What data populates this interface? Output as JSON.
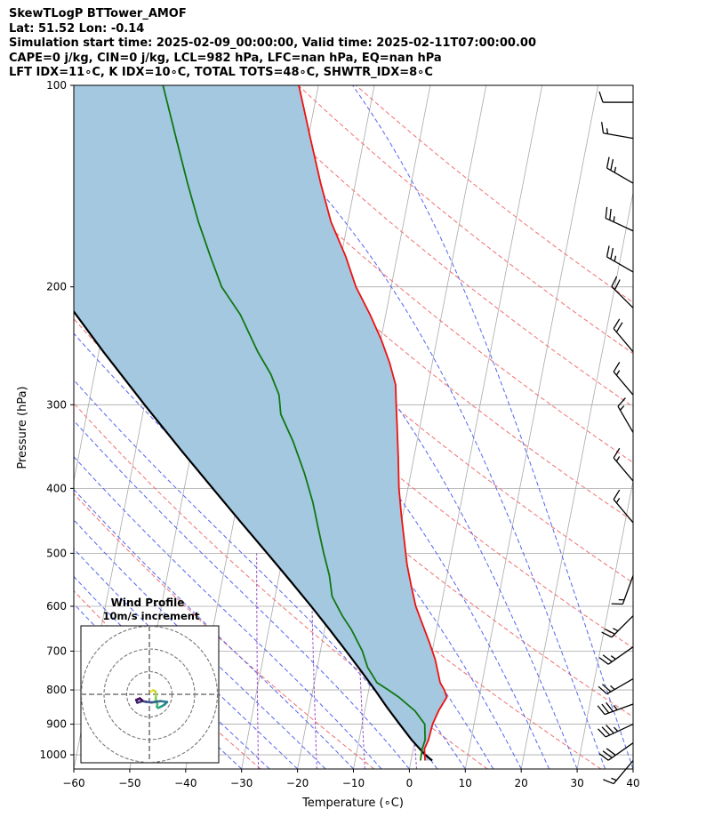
{
  "header": {
    "line1": "SkewTLogP BTTower_AMOF",
    "line2": "Lat: 51.52   Lon: -0.14",
    "line3": "Simulation start time: 2025-02-09_00:00:00, Valid time: 2025-02-11T07:00:00.00",
    "line4": "CAPE=0 j/kg, CIN=0 j/kg, LCL=982 hPa, LFC=nan hPa, EQ=nan hPa",
    "line5": "LFT IDX=11∘C, K IDX=10∘C, TOTAL TOTS=48∘C, SHWTR_IDX=8∘C"
  },
  "chart_data": {
    "type": "line",
    "xlabel": "Temperature (∘C)",
    "ylabel": "Pressure (hPa)",
    "xlim": [
      -60,
      40
    ],
    "ylim": [
      1050,
      100
    ],
    "y_scale": "log",
    "x_ticks": [
      -60,
      -50,
      -40,
      -30,
      -20,
      -10,
      0,
      10,
      20,
      30,
      40
    ],
    "y_ticks": [
      100,
      200,
      300,
      400,
      500,
      600,
      700,
      800,
      900,
      1000
    ],
    "grid": true,
    "colors": {
      "temperature": "#ee1111",
      "dewpoint": "#117711",
      "parcel": "#000000",
      "cin_area": "#a3c8e0",
      "isotherm": "#a9a9a9",
      "dry_adiabat": "#f07070",
      "moist_adiabat": "#5566ee",
      "mixing_ratio": "#9955cc"
    },
    "series": [
      {
        "points": [
          [
            1020,
            2.5
          ],
          [
            980,
            2.0
          ],
          [
            950,
            2.4
          ],
          [
            900,
            2.6
          ],
          [
            860,
            3.2
          ],
          [
            820,
            4.2
          ],
          [
            800,
            3.5
          ],
          [
            780,
            2.5
          ],
          [
            720,
            0.8
          ],
          [
            680,
            -0.8
          ],
          [
            640,
            -2.6
          ],
          [
            600,
            -4.5
          ],
          [
            560,
            -6.0
          ],
          [
            520,
            -7.5
          ],
          [
            480,
            -8.8
          ],
          [
            440,
            -10.2
          ],
          [
            400,
            -11.6
          ],
          [
            360,
            -12.8
          ],
          [
            320,
            -14.2
          ],
          [
            300,
            -15.0
          ],
          [
            280,
            -15.8
          ],
          [
            260,
            -17.6
          ],
          [
            240,
            -19.9
          ],
          [
            220,
            -22.8
          ],
          [
            200,
            -26.3
          ],
          [
            180,
            -29.2
          ],
          [
            160,
            -33.0
          ],
          [
            140,
            -36.2
          ],
          [
            120,
            -39.6
          ],
          [
            100,
            -43.5
          ]
        ]
      },
      {
        "points": [
          [
            1020,
            1.7
          ],
          [
            980,
            1.6
          ],
          [
            950,
            1.8
          ],
          [
            900,
            1.2
          ],
          [
            860,
            -1.0
          ],
          [
            820,
            -4.4
          ],
          [
            800,
            -6.5
          ],
          [
            780,
            -8.8
          ],
          [
            740,
            -11.0
          ],
          [
            700,
            -12.5
          ],
          [
            650,
            -15.2
          ],
          [
            620,
            -17.3
          ],
          [
            580,
            -19.8
          ],
          [
            540,
            -21.0
          ],
          [
            500,
            -22.8
          ],
          [
            460,
            -24.6
          ],
          [
            420,
            -26.5
          ],
          [
            380,
            -29.0
          ],
          [
            340,
            -32.2
          ],
          [
            310,
            -35.3
          ],
          [
            290,
            -36.3
          ],
          [
            270,
            -38.5
          ],
          [
            250,
            -41.6
          ],
          [
            220,
            -46.0
          ],
          [
            200,
            -50.3
          ],
          [
            180,
            -53.4
          ],
          [
            160,
            -56.7
          ],
          [
            140,
            -60.0
          ],
          [
            120,
            -63.6
          ],
          [
            100,
            -67.8
          ]
        ]
      },
      {
        "points": [
          [
            1020,
            3.8
          ],
          [
            1000,
            2.3
          ],
          [
            950,
            -0.6
          ],
          [
            900,
            -3.3
          ],
          [
            850,
            -6.1
          ],
          [
            800,
            -8.9
          ],
          [
            750,
            -12.0
          ],
          [
            700,
            -15.4
          ],
          [
            650,
            -19.1
          ],
          [
            600,
            -23.2
          ],
          [
            550,
            -27.8
          ],
          [
            500,
            -32.9
          ],
          [
            450,
            -38.6
          ],
          [
            400,
            -44.9
          ],
          [
            350,
            -52.0
          ],
          [
            300,
            -60.0
          ],
          [
            250,
            -69.2
          ],
          [
            200,
            -80.0
          ],
          [
            150,
            -93.2
          ],
          [
            100,
            -110.6
          ]
        ]
      }
    ],
    "wind_barbs": [
      {
        "p": 1020,
        "speed_kt": 15,
        "dir_deg": 220
      },
      {
        "p": 960,
        "speed_kt": 30,
        "dir_deg": 235
      },
      {
        "p": 900,
        "speed_kt": 35,
        "dir_deg": 245
      },
      {
        "p": 840,
        "speed_kt": 35,
        "dir_deg": 250
      },
      {
        "p": 770,
        "speed_kt": 25,
        "dir_deg": 240
      },
      {
        "p": 690,
        "speed_kt": 25,
        "dir_deg": 235
      },
      {
        "p": 620,
        "speed_kt": 25,
        "dir_deg": 225
      },
      {
        "p": 540,
        "speed_kt": 15,
        "dir_deg": 200
      },
      {
        "p": 450,
        "speed_kt": 15,
        "dir_deg": 320
      },
      {
        "p": 390,
        "speed_kt": 15,
        "dir_deg": 320
      },
      {
        "p": 330,
        "speed_kt": 15,
        "dir_deg": 330
      },
      {
        "p": 290,
        "speed_kt": 15,
        "dir_deg": 320
      },
      {
        "p": 250,
        "speed_kt": 20,
        "dir_deg": 320
      },
      {
        "p": 215,
        "speed_kt": 20,
        "dir_deg": 315
      },
      {
        "p": 190,
        "speed_kt": 25,
        "dir_deg": 300
      },
      {
        "p": 165,
        "speed_kt": 25,
        "dir_deg": 295
      },
      {
        "p": 140,
        "speed_kt": 25,
        "dir_deg": 300
      },
      {
        "p": 120,
        "speed_kt": 15,
        "dir_deg": 280
      },
      {
        "p": 106,
        "speed_kt": 10,
        "dir_deg": 270
      }
    ],
    "hodograph": {
      "title": "Wind Profile",
      "subtitle": "10m/s increment",
      "ring_step_ms": 10,
      "points_uv": [
        [
          0.8,
          1.2
        ],
        [
          1.5,
          1.8
        ],
        [
          2.6,
          1.4
        ],
        [
          3.0,
          0.0
        ],
        [
          2.8,
          -1.8
        ],
        [
          3.0,
          -3.3
        ],
        [
          3.5,
          -4.3
        ],
        [
          3.3,
          -5.5
        ],
        [
          3.9,
          -6.0
        ],
        [
          5.2,
          -5.4
        ],
        [
          6.6,
          -4.6
        ],
        [
          7.8,
          -3.4
        ],
        [
          5.0,
          -3.0
        ],
        [
          3.2,
          -3.2
        ],
        [
          1.0,
          -3.6
        ],
        [
          -1.5,
          -3.3
        ],
        [
          -3.0,
          -3.0
        ],
        [
          -5.3,
          -3.7
        ],
        [
          -5.8,
          -2.5
        ],
        [
          -4.2,
          -1.8
        ],
        [
          -3.2,
          -2.6
        ]
      ]
    }
  }
}
